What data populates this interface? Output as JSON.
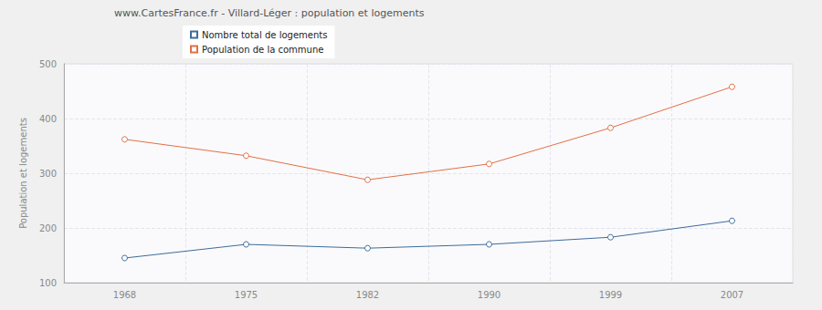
{
  "chart_data": {
    "type": "line",
    "title": "www.CartesFrance.fr - Villard-Léger : population et logements",
    "y_label": "Population et logements",
    "categories": [
      "1968",
      "1975",
      "1982",
      "1990",
      "1999",
      "2007"
    ],
    "series": [
      {
        "name": "Nombre total de logements",
        "color": "#3d6b9b",
        "values": [
          145,
          170,
          163,
          170,
          183,
          213
        ]
      },
      {
        "name": "Population de la commune",
        "color": "#e36f45",
        "values": [
          362,
          332,
          288,
          317,
          383,
          458
        ]
      }
    ],
    "ylim": [
      100,
      500
    ],
    "yticks": [
      100,
      200,
      300,
      400,
      500
    ],
    "grid": true,
    "legend": "top-left",
    "marker": "circle"
  }
}
